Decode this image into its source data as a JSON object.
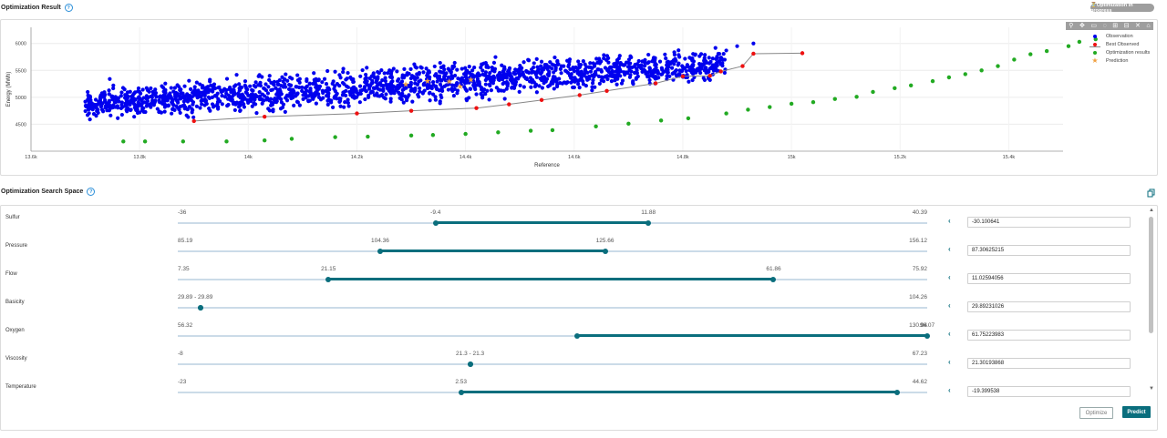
{
  "result_header": {
    "title": "Optimization Result",
    "help": "?",
    "badge": "⏳Optimization in progress"
  },
  "chart_data": {
    "type": "scatter",
    "xlabel": "Reference",
    "ylabel": "Energy (MWh)",
    "xlim": [
      13600,
      15500
    ],
    "ylim": [
      4000,
      6300
    ],
    "x_ticks": [
      "13.6k",
      "13.8k",
      "14k",
      "14.2k",
      "14.4k",
      "14.6k",
      "14.8k",
      "15k",
      "15.2k",
      "15.4k"
    ],
    "y_ticks": [
      "4500",
      "5000",
      "5500",
      "6000"
    ],
    "grid": true,
    "legend_position": "top-right",
    "series": [
      {
        "name": "Observation",
        "color": "#0000ee",
        "marker": "circle",
        "band": {
          "x_start": 13700,
          "x_end": 14880,
          "y_center_start": 4870,
          "y_center_end": 5620
        },
        "outliers": [
          [
            13745,
            5340
          ],
          [
            13700,
            4920
          ],
          [
            14175,
            5530
          ],
          [
            14380,
            5640
          ],
          [
            14750,
            5360
          ],
          [
            14880,
            5870
          ],
          [
            14930,
            6000
          ],
          [
            14900,
            5950
          ],
          [
            14840,
            5500
          ],
          [
            14800,
            5380
          ]
        ]
      },
      {
        "name": "Best Observed",
        "color": "#ee1111",
        "marker": "circle-line",
        "line_color": "#888888",
        "points": [
          [
            13900,
            4560
          ],
          [
            14030,
            4640
          ],
          [
            14200,
            4700
          ],
          [
            14300,
            4750
          ],
          [
            14420,
            4800
          ],
          [
            14480,
            4870
          ],
          [
            14540,
            4950
          ],
          [
            14610,
            5040
          ],
          [
            14660,
            5120
          ],
          [
            14750,
            5260
          ],
          [
            14800,
            5390
          ],
          [
            14850,
            5400
          ],
          [
            14870,
            5480
          ],
          [
            14910,
            5580
          ],
          [
            14930,
            5810
          ],
          [
            15020,
            5820
          ]
        ]
      },
      {
        "name": "Optimization results",
        "color": "#22aa22",
        "marker": "circle",
        "points": [
          [
            13770,
            4180
          ],
          [
            13810,
            4180
          ],
          [
            13880,
            4180
          ],
          [
            13960,
            4180
          ],
          [
            14030,
            4200
          ],
          [
            14080,
            4230
          ],
          [
            14160,
            4260
          ],
          [
            14220,
            4270
          ],
          [
            14300,
            4290
          ],
          [
            14340,
            4300
          ],
          [
            14400,
            4320
          ],
          [
            14460,
            4350
          ],
          [
            14520,
            4380
          ],
          [
            14560,
            4390
          ],
          [
            14640,
            4460
          ],
          [
            14700,
            4510
          ],
          [
            14760,
            4570
          ],
          [
            14810,
            4610
          ],
          [
            14880,
            4700
          ],
          [
            14920,
            4770
          ],
          [
            14960,
            4820
          ],
          [
            15000,
            4880
          ],
          [
            15040,
            4910
          ],
          [
            15080,
            4970
          ],
          [
            15120,
            5010
          ],
          [
            15150,
            5100
          ],
          [
            15190,
            5170
          ],
          [
            15220,
            5220
          ],
          [
            15260,
            5300
          ],
          [
            15290,
            5370
          ],
          [
            15320,
            5430
          ],
          [
            15350,
            5500
          ],
          [
            15380,
            5580
          ],
          [
            15410,
            5700
          ],
          [
            15440,
            5800
          ],
          [
            15470,
            5860
          ],
          [
            15510,
            5950
          ],
          [
            15530,
            6030
          ],
          [
            15560,
            6080
          ]
        ]
      },
      {
        "name": "Prediction",
        "color": "#f0a040",
        "marker": "star",
        "points": [
          [
            14290,
            5240
          ],
          [
            14330,
            5300
          ],
          [
            14370,
            5290
          ],
          [
            14410,
            5330
          ],
          [
            14390,
            5200
          ]
        ]
      }
    ]
  },
  "toolbar_icons": [
    "zoom-icon",
    "pan-icon",
    "select-icon",
    "lasso-icon",
    "zoom-in-icon",
    "zoom-out-icon",
    "autoscale-icon",
    "reset-icon"
  ],
  "space_header": {
    "title": "Optimization Search Space",
    "help": "?",
    "copy_icon": "copy-icon"
  },
  "params": [
    {
      "name": "Sulfur",
      "min": "-36",
      "max": "40.39",
      "low": "-9.4",
      "high": "11.88",
      "lo_f": 0.344,
      "hi_f": 0.628,
      "value": "-30.100641"
    },
    {
      "name": "Pressure",
      "min": "85.19",
      "max": "156.12",
      "low": "104.36",
      "high": "125.66",
      "lo_f": 0.27,
      "hi_f": 0.57,
      "value": "87.30625215"
    },
    {
      "name": "Flow",
      "min": "7.35",
      "max": "75.92",
      "low": "21.15",
      "high": "61.86",
      "lo_f": 0.201,
      "hi_f": 0.795,
      "value": "11.02594056"
    },
    {
      "name": "Basicity",
      "min": "29.89 - 29.89",
      "max": "104.26",
      "low": "",
      "high": "",
      "lo_f": 0.03,
      "hi_f": 0.03,
      "value": "29.89231026"
    },
    {
      "name": "Oxygen",
      "min": "56.32",
      "max": "130.94",
      "low": "",
      "high": "96.07",
      "lo_f": 0.533,
      "hi_f": 1.0,
      "value": "61.75223983"
    },
    {
      "name": "Viscosity",
      "min": "-8",
      "max": "67.23",
      "low": "21.3 - 21.3",
      "high": "",
      "lo_f": 0.39,
      "hi_f": 0.39,
      "value": "21.30193868"
    },
    {
      "name": "Temperature",
      "min": "-23",
      "max": "44.62",
      "low": "2.53",
      "high": "",
      "lo_f": 0.378,
      "hi_f": 0.96,
      "value": "-19.399538"
    }
  ],
  "buttons": {
    "optimize": "Optimize",
    "predict": "Predict"
  },
  "colors": {
    "accent": "#0a6e7d",
    "track": "#cbdbe8"
  }
}
